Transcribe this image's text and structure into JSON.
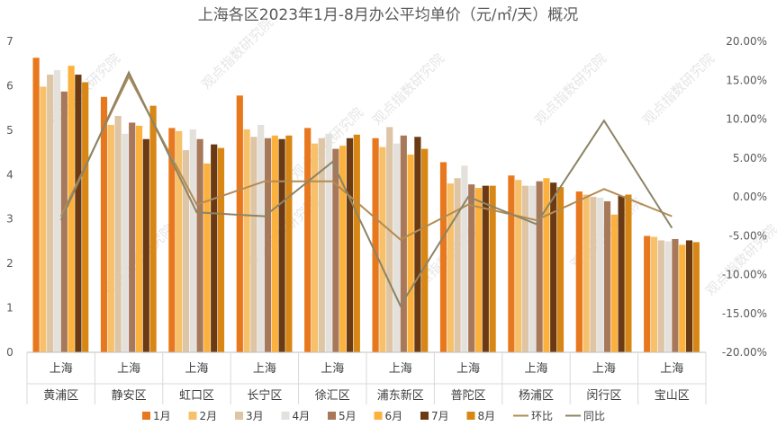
{
  "chart_data": {
    "type": "bar",
    "title": "上海各区2023年1月-8月办公平均单价（元/㎡/天）概况",
    "watermark": "观点指数研究院",
    "categories": [
      [
        "上海",
        "黄浦区"
      ],
      [
        "上海",
        "静安区"
      ],
      [
        "上海",
        "虹口区"
      ],
      [
        "上海",
        "长宁区"
      ],
      [
        "上海",
        "徐汇区"
      ],
      [
        "上海",
        "浦东新区"
      ],
      [
        "上海",
        "普陀区"
      ],
      [
        "上海",
        "杨浦区"
      ],
      [
        "上海",
        "闵行区"
      ],
      [
        "上海",
        "宝山区"
      ]
    ],
    "ylim": [
      0,
      7
    ],
    "y_ticks": [
      "0",
      "1",
      "2",
      "3",
      "4",
      "5",
      "6",
      "7"
    ],
    "y2lim": [
      -0.2,
      0.2
    ],
    "y2_ticks": [
      "-20.00%",
      "-15.00%",
      "-10.00%",
      "-5.00%",
      "0.00%",
      "5.00%",
      "10.00%",
      "15.00%",
      "20.00%"
    ],
    "grid": false,
    "legend_position": "bottom",
    "series": [
      {
        "name": "1月",
        "kind": "bar",
        "color": "#e8781e",
        "values": [
          6.63,
          5.75,
          5.05,
          5.78,
          5.05,
          4.82,
          4.28,
          3.98,
          3.62,
          2.62
        ]
      },
      {
        "name": "2月",
        "kind": "bar",
        "color": "#f7c06a",
        "values": [
          5.98,
          5.12,
          4.98,
          5.02,
          4.7,
          4.62,
          3.8,
          3.88,
          3.55,
          2.6
        ]
      },
      {
        "name": "3月",
        "kind": "bar",
        "color": "#ddc5a6",
        "values": [
          6.25,
          5.32,
          4.55,
          4.85,
          4.82,
          5.07,
          3.92,
          3.75,
          3.5,
          2.52
        ]
      },
      {
        "name": "4月",
        "kind": "bar",
        "color": "#e4e1dc",
        "values": [
          6.35,
          4.92,
          5.02,
          5.12,
          4.92,
          4.7,
          4.2,
          3.75,
          3.48,
          2.5
        ]
      },
      {
        "name": "5月",
        "kind": "bar",
        "color": "#a7785a",
        "values": [
          5.87,
          5.17,
          4.8,
          4.82,
          4.58,
          4.88,
          3.78,
          3.85,
          3.4,
          2.55
        ]
      },
      {
        "name": "6月",
        "kind": "bar",
        "color": "#fbb13c",
        "values": [
          6.45,
          5.1,
          4.25,
          4.88,
          4.65,
          4.45,
          3.7,
          3.92,
          3.1,
          2.42
        ]
      },
      {
        "name": "7月",
        "kind": "bar",
        "color": "#6b3a12",
        "values": [
          6.25,
          4.8,
          4.68,
          4.8,
          4.82,
          4.85,
          3.75,
          3.82,
          3.52,
          2.52
        ]
      },
      {
        "name": "8月",
        "kind": "bar",
        "color": "#d88714",
        "values": [
          6.08,
          5.55,
          4.6,
          4.88,
          4.9,
          4.58,
          3.75,
          3.72,
          3.55,
          2.48
        ]
      },
      {
        "name": "环比",
        "kind": "line",
        "axis": "right",
        "color": "#b38b54",
        "values": [
          -0.025,
          0.155,
          -0.01,
          0.02,
          0.02,
          -0.055,
          -0.01,
          -0.03,
          0.01,
          -0.025
        ]
      },
      {
        "name": "同比",
        "kind": "line",
        "axis": "right",
        "color": "#8c8466",
        "values": [
          -0.03,
          0.16,
          -0.02,
          -0.025,
          0.045,
          -0.14,
          0.0,
          -0.035,
          0.098,
          -0.04
        ]
      }
    ]
  }
}
